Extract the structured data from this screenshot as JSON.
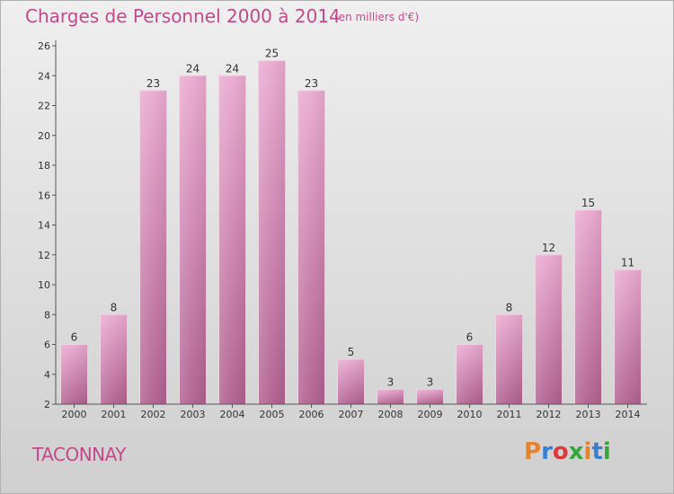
{
  "header": {
    "title": "Charges de Personnel 2000 à 2014",
    "subtitle": "(en milliers d'€)"
  },
  "footer": {
    "commune": "TACONNAY",
    "logo_text": "Proxiti"
  },
  "colors": {
    "accent": "#c34a8a",
    "bar_top": "#eaa9d0",
    "bar_bottom": "#b0608f",
    "logo": [
      "#e8832a",
      "#3a7fd0",
      "#d93a3a",
      "#36a83b",
      "#e8832a",
      "#3a7fd0",
      "#36a83b"
    ]
  },
  "chart_data": {
    "type": "bar",
    "categories": [
      "2000",
      "2001",
      "2002",
      "2003",
      "2004",
      "2005",
      "2006",
      "2007",
      "2008",
      "2009",
      "2010",
      "2011",
      "2012",
      "2013",
      "2014"
    ],
    "values": [
      6,
      8,
      23,
      24,
      24,
      25,
      23,
      5,
      3,
      3,
      6,
      8,
      12,
      15,
      11
    ],
    "title": "Charges de Personnel 2000 à 2014",
    "unit": "(en milliers d'€)",
    "ylim": [
      2,
      26
    ],
    "yticks": [
      2,
      4,
      6,
      8,
      10,
      12,
      14,
      16,
      18,
      20,
      22,
      24,
      26
    ],
    "grid": false,
    "legend": "none"
  }
}
